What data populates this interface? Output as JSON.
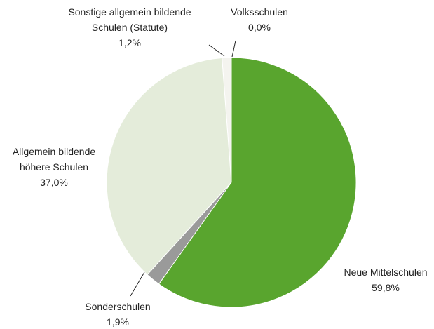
{
  "chart_data": {
    "type": "pie",
    "categories": [
      "Volksschulen",
      "Neue Mittelschulen",
      "Sonderschulen",
      "Allgemein bildende höhere Schulen",
      "Sonstige allgemein bildende Schulen (Statute)"
    ],
    "values": [
      0.0,
      59.8,
      1.9,
      37.0,
      1.2
    ],
    "value_labels": [
      "0,0%",
      "59,8%",
      "1,9%",
      "37,0%",
      "1,2%"
    ],
    "colors": [
      "#4f9a2a",
      "#59a52e",
      "#9a9a9a",
      "#e4ecda",
      "#f4f4ef"
    ]
  }
}
